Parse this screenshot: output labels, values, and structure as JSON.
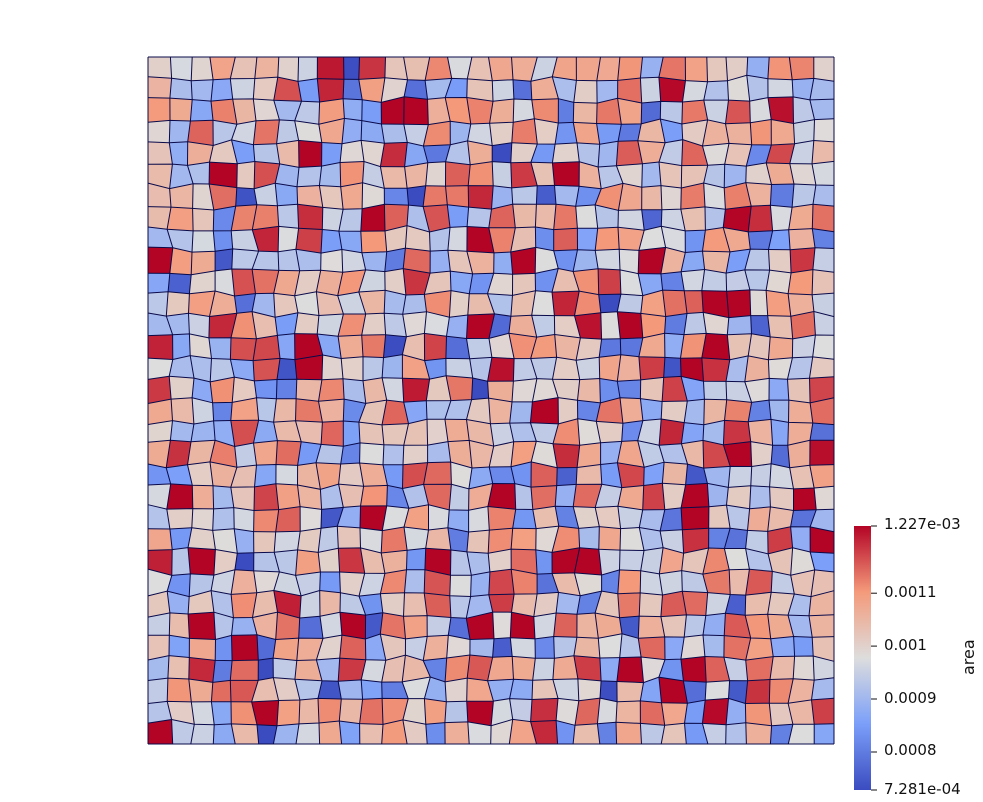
{
  "chart_data": {
    "type": "heatmap",
    "description_grid": {
      "cols": 32,
      "rows": 32
    },
    "field": "area",
    "colorbar": {
      "title": "area",
      "min": 0.0007281,
      "max": 0.001227,
      "min_label": "7.281e-04",
      "max_label": "1.227e-03",
      "ticks": [
        {
          "value": 0.0011,
          "label": "0.0011"
        },
        {
          "value": 0.001,
          "label": "0.001"
        },
        {
          "value": 0.0009,
          "label": "0.0009"
        },
        {
          "value": 0.0008,
          "label": "0.0008"
        }
      ],
      "colormap": [
        "#3b4cc0",
        "#dddddd",
        "#b40426"
      ]
    },
    "highlights": [
      {
        "col": 25,
        "row": 14,
        "value": 0.001227
      },
      {
        "col": 30,
        "row": 20,
        "value": 0.001227
      },
      {
        "col": 16,
        "row": 25,
        "value": 0.00118
      },
      {
        "col": 13,
        "row": 6,
        "value": 0.00113
      },
      {
        "col": 14,
        "row": 6,
        "value": 0.00113
      },
      {
        "col": 11,
        "row": 7,
        "value": 0.00115
      },
      {
        "col": 29,
        "row": 4,
        "value": 0.00117
      },
      {
        "col": 13,
        "row": 24,
        "value": 0.00116
      },
      {
        "col": 25,
        "row": 11,
        "value": 0.00115
      },
      {
        "col": 3,
        "row": 29,
        "value": 0.00114
      },
      {
        "col": 6,
        "row": 18,
        "value": 0.00114
      },
      {
        "col": 11,
        "row": 13,
        "value": 0.00073
      },
      {
        "col": 1,
        "row": 10,
        "value": 0.00076
      },
      {
        "col": 14,
        "row": 13,
        "value": 0.00078
      },
      {
        "col": 7,
        "row": 26,
        "value": 0.00078
      },
      {
        "col": 25,
        "row": 29,
        "value": 0.00078
      },
      {
        "col": 24,
        "row": 21,
        "value": 0.00079
      },
      {
        "col": 29,
        "row": 6,
        "value": 0.0008
      },
      {
        "col": 3,
        "row": 7,
        "value": 0.00082
      }
    ]
  }
}
